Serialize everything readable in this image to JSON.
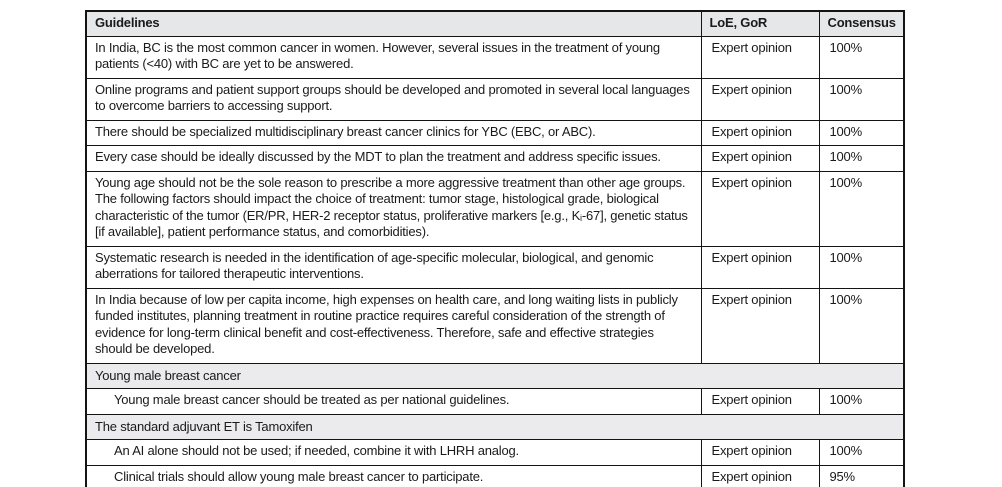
{
  "table": {
    "headers": [
      "Guidelines",
      "LoE, GoR",
      "Consensus"
    ],
    "rows": [
      {
        "type": "data",
        "indent": false,
        "guideline": "In India, BC is the most common cancer in women. However, several issues in the treatment of young patients (<40) with BC are yet to be answered.",
        "loe": "Expert opinion",
        "consensus": "100%"
      },
      {
        "type": "data",
        "indent": false,
        "guideline": "Online programs and patient support groups should be developed and promoted in several local languages to overcome barriers to accessing support.",
        "loe": "Expert opinion",
        "consensus": "100%"
      },
      {
        "type": "data",
        "indent": false,
        "guideline": "There should be specialized multidisciplinary breast cancer clinics for YBC (EBC, or ABC).",
        "loe": "Expert opinion",
        "consensus": "100%"
      },
      {
        "type": "data",
        "indent": false,
        "guideline": "Every case should be ideally discussed by the MDT to plan the treatment and address specific issues.",
        "loe": "Expert opinion",
        "consensus": "100%"
      },
      {
        "type": "data",
        "indent": false,
        "guideline": "Young age should not be the sole reason to prescribe a more aggressive treatment than other age groups. The following factors should impact the choice of treatment: tumor stage, histological grade, biological characteristic of the tumor (ER/PR, HER-2 receptor status, proliferative markers [e.g., Kᵢ-67], genetic status [if available], patient performance status, and comorbidities).",
        "loe": "Expert opinion",
        "consensus": "100%"
      },
      {
        "type": "data",
        "indent": false,
        "guideline": "Systematic research is needed in the identification of age-specific molecular, biological, and genomic aberrations for tailored therapeutic interventions.",
        "loe": "Expert opinion",
        "consensus": "100%"
      },
      {
        "type": "data",
        "indent": false,
        "guideline": "In India because of low per capita income, high expenses on health care, and long waiting lists in publicly funded institutes, planning treatment in routine practice requires careful consideration of the strength of evidence for long-term clinical benefit and cost-effectiveness. Therefore, safe and effective strategies should be developed.",
        "loe": "Expert opinion",
        "consensus": "100%"
      },
      {
        "type": "section",
        "guideline": "Young male breast cancer"
      },
      {
        "type": "data",
        "indent": true,
        "guideline": "Young male breast cancer should be treated as per national guidelines.",
        "loe": "Expert opinion",
        "consensus": "100%"
      },
      {
        "type": "section",
        "guideline": "The standard adjuvant ET is Tamoxifen"
      },
      {
        "type": "data",
        "indent": true,
        "guideline": "An AI alone should not be used; if needed, combine it with LHRH analog.",
        "loe": "Expert opinion",
        "consensus": "100%"
      },
      {
        "type": "data",
        "indent": true,
        "guideline": "Clinical trials should allow young male breast cancer to participate.",
        "loe": "Expert opinion",
        "consensus": "95%"
      }
    ],
    "colors": {
      "header_bg": "#e6e7e9",
      "section_bg": "#ebebed",
      "border": "#141414",
      "text": "#1a1a1a"
    }
  }
}
